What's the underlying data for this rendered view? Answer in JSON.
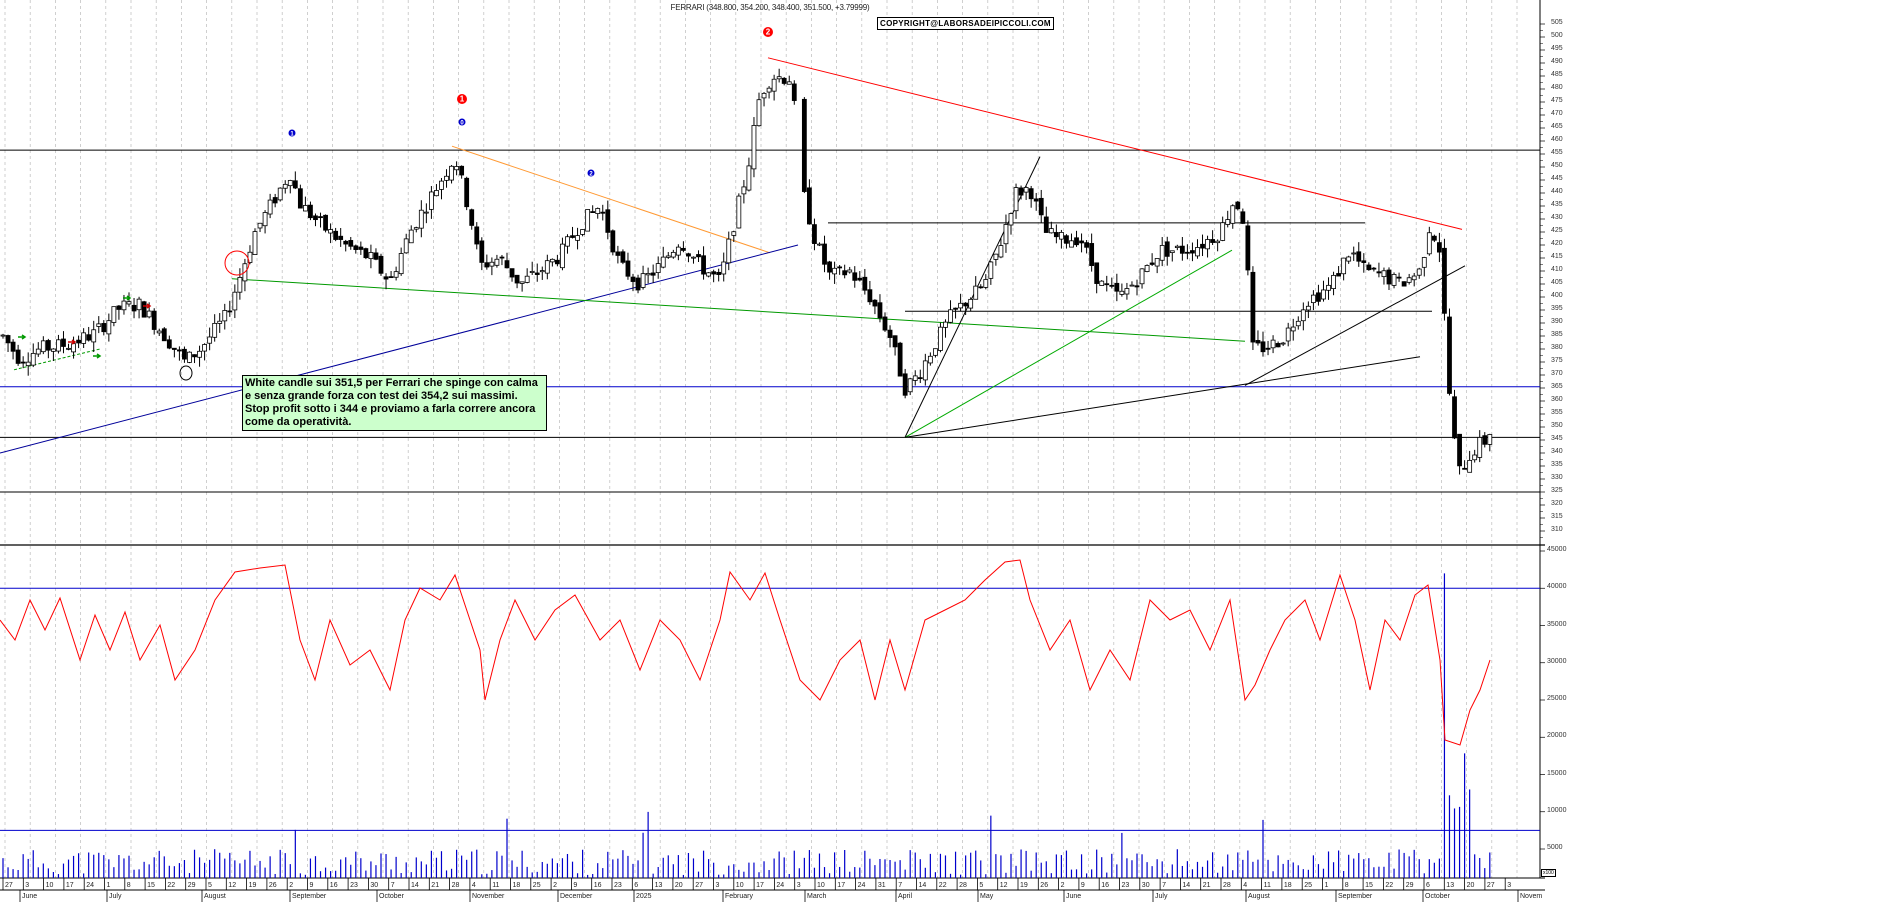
{
  "title": "FERRARI (348.800, 354.200, 348.400, 351.500, +3.79999)",
  "copyright": "COPYRIGHT@LABORSADEIPICCOLI.COM",
  "annotation": {
    "lines": [
      "White candle sui 351,5 per Ferrari che spinge con calma",
      "e senza grande forza con test dei 354,2 sui massimi.",
      "Stop profit sotto i 344 e proviamo a farla correre ancora",
      "come da operatività."
    ],
    "background": "#ccffcc"
  },
  "markers": [
    {
      "label": "1",
      "color": "#0000cc",
      "type": "wave"
    },
    {
      "label": "1",
      "color": "#ff0000",
      "type": "wave"
    },
    {
      "label": "0",
      "color": "#0000cc",
      "type": "wave"
    },
    {
      "label": "2",
      "color": "#0000cc",
      "type": "wave"
    },
    {
      "label": "2",
      "color": "#ff0000",
      "type": "wave"
    }
  ],
  "chart_data": [
    {
      "type": "candlestick",
      "title": "FERRARI (348.800, 354.200, 348.400, 351.500, +3.79999)",
      "ylim": [
        305,
        510
      ],
      "yticks": [
        310,
        315,
        320,
        325,
        330,
        335,
        340,
        345,
        350,
        355,
        360,
        365,
        370,
        375,
        380,
        385,
        390,
        395,
        400,
        405,
        410,
        415,
        420,
        425,
        430,
        435,
        440,
        445,
        450,
        455,
        460,
        465,
        470,
        475,
        480,
        485,
        490,
        495,
        500,
        505
      ],
      "last_candle": {
        "open": 348.8,
        "high": 354.2,
        "low": 348.4,
        "close": 351.5,
        "change": 3.79999
      },
      "horizontal_lines": [
        {
          "value": 456.5,
          "color": "#000000"
        },
        {
          "value": 428.5,
          "color": "#000000",
          "range": "Mar-Sep 2025"
        },
        {
          "value": 394.5,
          "color": "#000000",
          "range": "Apr-Oct 2025"
        },
        {
          "value": 365.5,
          "color": "#0000cc"
        },
        {
          "value": 346,
          "color": "#000000"
        },
        {
          "value": 325,
          "color": "#000000"
        }
      ],
      "trendlines": [
        {
          "color": "#ff0000",
          "from": {
            "date": "Feb 2025",
            "value": 492
          },
          "to": {
            "date": "Oct 2025",
            "value": 426
          }
        },
        {
          "color": "#ff9933",
          "from": {
            "date": "Oct 2024",
            "value": 458
          },
          "to": {
            "date": "Feb 2025",
            "value": 417
          }
        },
        {
          "color": "#000099",
          "from": {
            "date": "May 2024",
            "value": 340
          },
          "to": {
            "date": "Feb 2025",
            "value": 420
          }
        },
        {
          "color": "#009900",
          "from": {
            "date": "Aug 2024",
            "value": 407
          },
          "to": {
            "date": "Aug 2025",
            "value": 383
          }
        },
        {
          "color": "#000000",
          "from": {
            "date": "Apr 2025",
            "value": 346
          },
          "to": {
            "date": "May 2025",
            "value": 454
          }
        },
        {
          "color": "#00aa00",
          "from": {
            "date": "Apr 2025",
            "value": 346
          },
          "to": {
            "date": "Jul 2025",
            "value": 418
          }
        },
        {
          "color": "#000000",
          "from": {
            "date": "Apr 2025",
            "value": 346
          },
          "to": {
            "date": "Oct 2025",
            "value": 377
          }
        },
        {
          "color": "#000000",
          "from": {
            "date": "Aug 2025",
            "value": 366
          },
          "to": {
            "date": "Oct 2025",
            "value": 412
          }
        }
      ],
      "key_levels": {
        "high": 492,
        "recent_low": 322,
        "last_close": 351.5
      }
    },
    {
      "type": "line+bar",
      "title": "Volume (x100)",
      "ylim": [
        0,
        46000
      ],
      "yticks": [
        5000,
        10000,
        15000,
        20000,
        25000,
        30000,
        35000,
        40000,
        45000
      ],
      "unit_label": "x100",
      "horizontal_lines": [
        {
          "value": 40000,
          "color": "#0000cc"
        },
        {
          "value": 7500,
          "color": "#0000cc"
        }
      ],
      "series": [
        {
          "name": "volume average",
          "color": "#ff0000",
          "type": "line",
          "recent_last": 25000,
          "range": [
            3500,
            43000
          ]
        },
        {
          "name": "volume",
          "color": "#0000cc",
          "type": "bar",
          "max_spike": 42000
        }
      ]
    }
  ],
  "x_axis": {
    "day_ticks": [
      "27",
      "3",
      "10",
      "17",
      "24",
      "1",
      "8",
      "15",
      "22",
      "29",
      "5",
      "12",
      "19",
      "26",
      "2",
      "9",
      "16",
      "23",
      "30",
      "7",
      "14",
      "21",
      "28",
      "4",
      "11",
      "18",
      "25",
      "2",
      "9",
      "16",
      "23",
      "6",
      "13",
      "20",
      "27",
      "3",
      "10",
      "17",
      "24",
      "3",
      "10",
      "17",
      "24",
      "31",
      "7",
      "14",
      "22",
      "28",
      "5",
      "12",
      "19",
      "26",
      "2",
      "9",
      "16",
      "23",
      "30",
      "7",
      "14",
      "21",
      "28",
      "4",
      "11",
      "18",
      "25",
      "1",
      "8",
      "15",
      "22",
      "29",
      "6",
      "13",
      "20",
      "27",
      "3"
    ],
    "months": [
      "June",
      "July",
      "August",
      "September",
      "October",
      "November",
      "December",
      "2025",
      "February",
      "March",
      "April",
      "May",
      "June",
      "July",
      "August",
      "September",
      "October",
      "Novem"
    ]
  },
  "colors": {
    "grid": "#bbbbbb",
    "up_candle": "#ffffff",
    "down_candle": "#000000",
    "price_axis": "#333333"
  }
}
